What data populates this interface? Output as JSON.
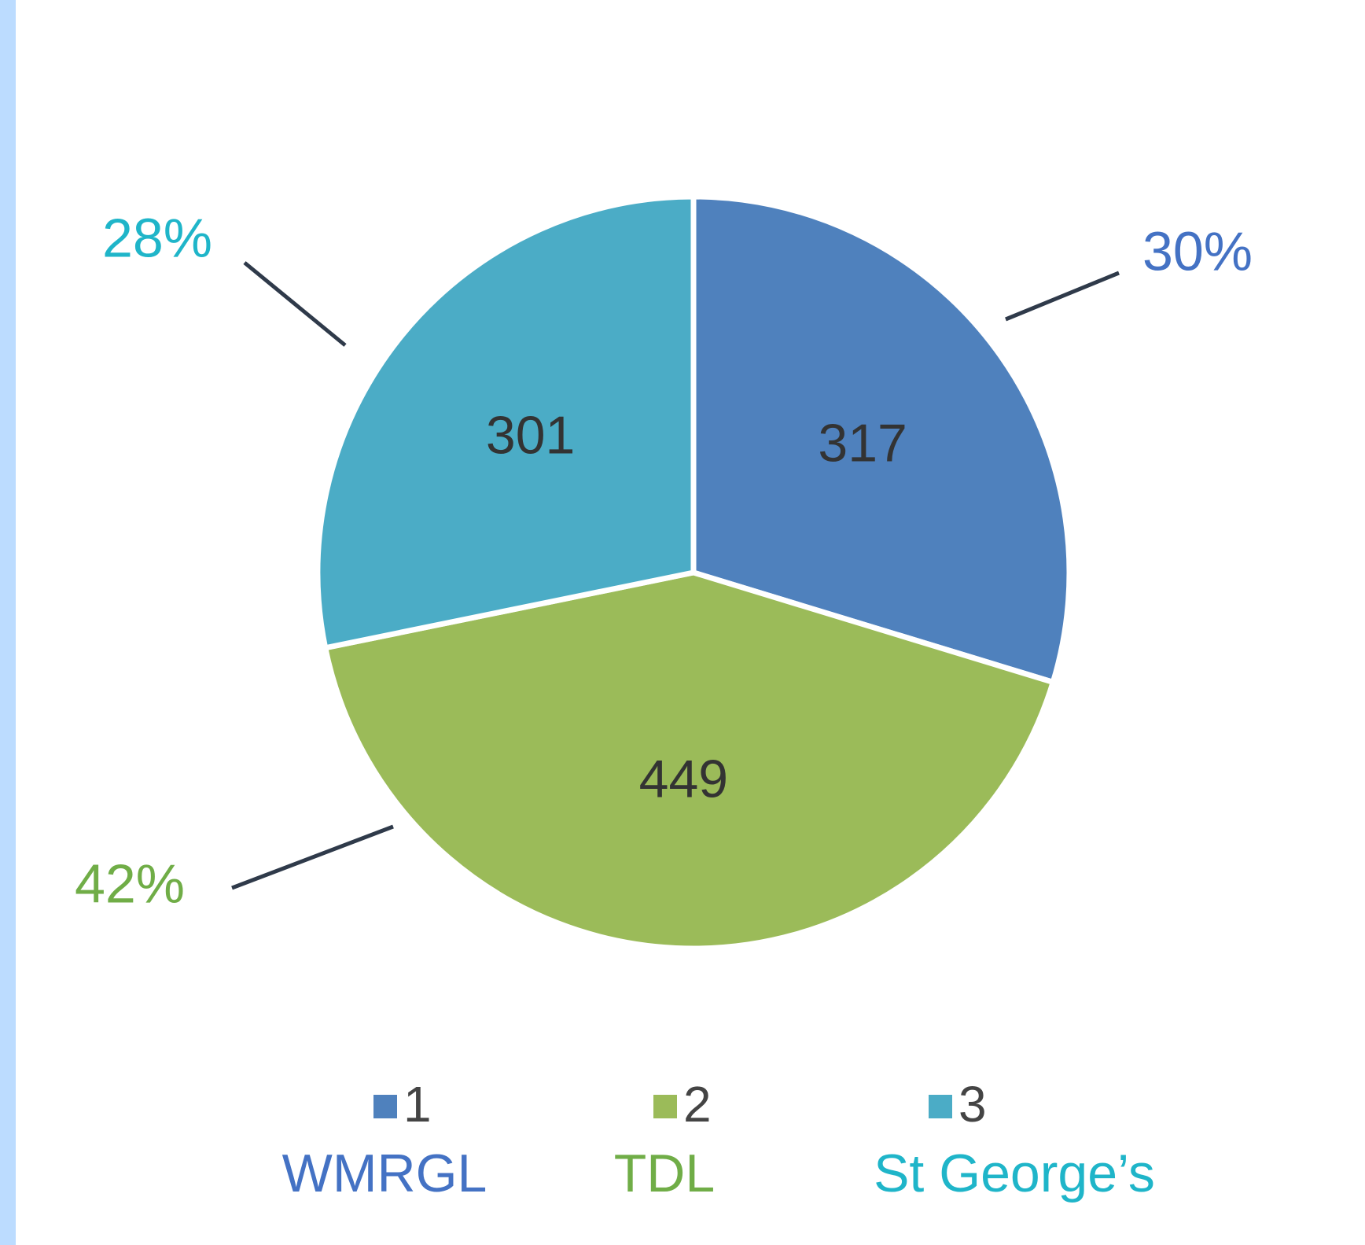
{
  "chart_data": {
    "type": "pie",
    "categories": [
      "1",
      "2",
      "3"
    ],
    "values": [
      317,
      449,
      301
    ],
    "percent_labels": [
      "30%",
      "42%",
      "28%"
    ],
    "colors": [
      "#4f81bd",
      "#9bbb59",
      "#4bacc6"
    ],
    "names": [
      "WMRGL",
      "TDL",
      "St George’s"
    ],
    "name_colors": [
      "#4472c4",
      "#70ad47",
      "#1fb5c9"
    ],
    "legend": "bottom"
  }
}
